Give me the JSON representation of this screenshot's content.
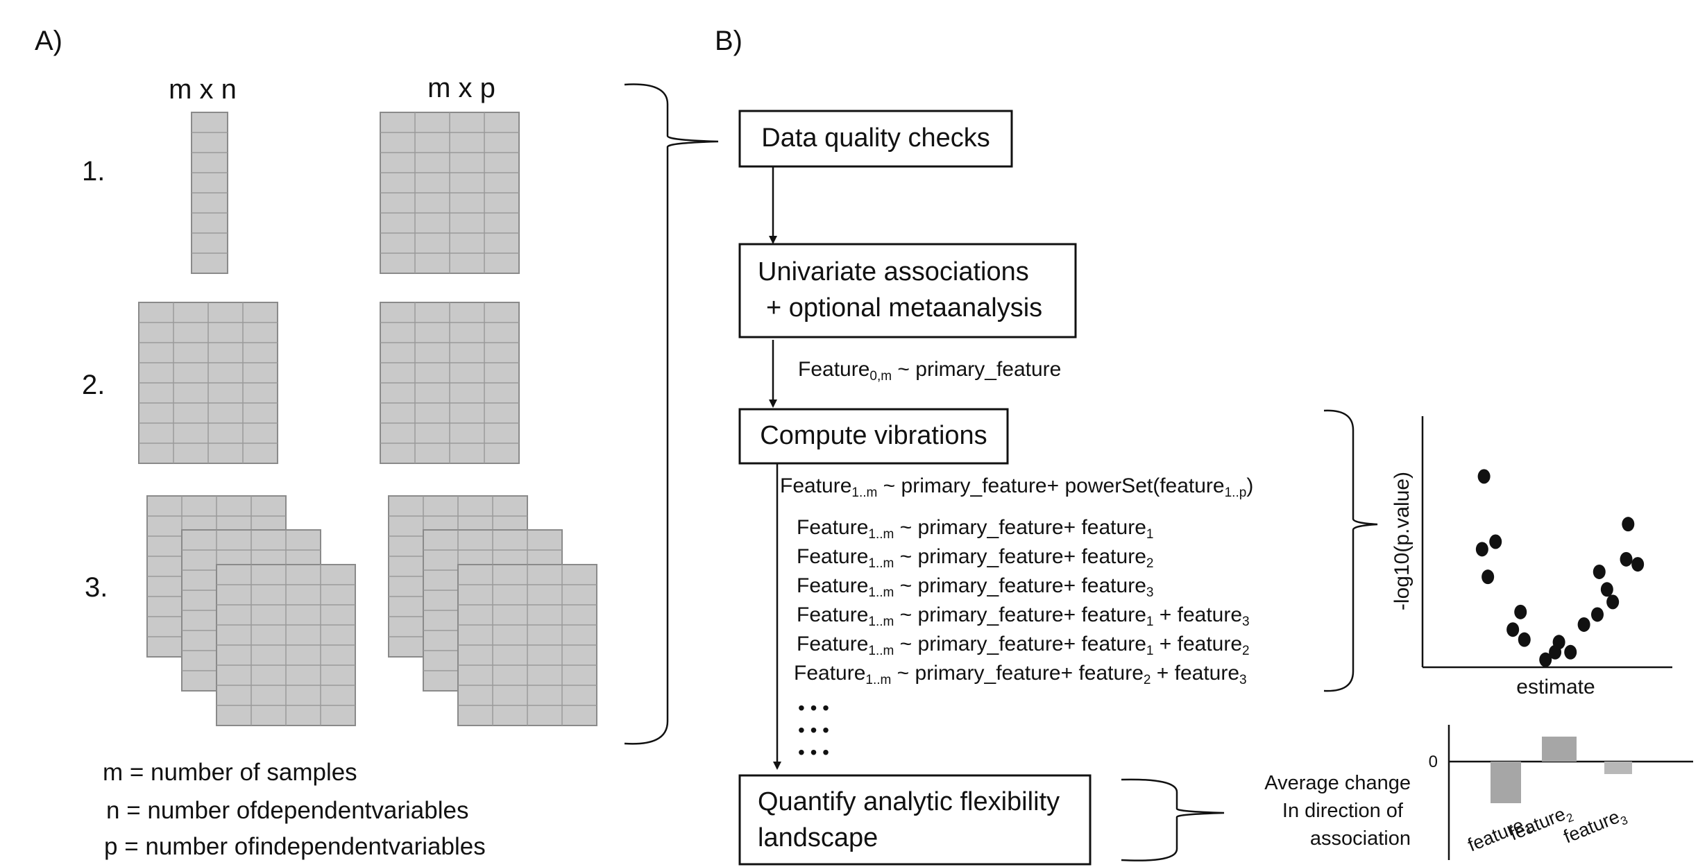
{
  "panel_a": {
    "label": "A)",
    "col_headers": [
      "m x n",
      "m x p"
    ],
    "row_labels": [
      "1.",
      "2.",
      "3."
    ],
    "legend": [
      "m = number of samples",
      "n = number ofdependentvariables",
      "p = number ofindependentvariables"
    ]
  },
  "panel_b": {
    "label": "B)",
    "steps": {
      "data_quality": "Data quality checks",
      "univariate_line1": "Univariate associations",
      "univariate_line2": "+ optional metaanalysis",
      "compute_vibrations": "Compute vibrations",
      "quantify_line1": "Quantify analytic flexibility",
      "quantify_line2": "landscape"
    },
    "univariate_formula": {
      "base": "Feature",
      "sub": "0,m",
      "rest": " ~ primary_feature"
    },
    "powerset_formula": {
      "base": "Feature",
      "sub": "1..m",
      "mid": " ~ primary_feature+  powerSet(feature",
      "sub2": "1..p",
      "end": ")"
    },
    "models": [
      {
        "base": "Feature",
        "sub": "1..m",
        "mid": " ~ primary_feature+ feature",
        "s1": "1",
        "tail": "",
        "s2": ""
      },
      {
        "base": "Feature",
        "sub": "1..m",
        "mid": " ~ primary_feature+ feature",
        "s1": "2",
        "tail": "",
        "s2": ""
      },
      {
        "base": "Feature",
        "sub": "1..m",
        "mid": " ~ primary_feature+ feature",
        "s1": "3",
        "tail": "",
        "s2": ""
      },
      {
        "base": "Feature",
        "sub": "1..m",
        "mid": " ~ primary_feature+ feature",
        "s1": "1",
        "tail": " + feature",
        "s2": "3"
      },
      {
        "base": "Feature",
        "sub": "1..m",
        "mid": " ~ primary_feature+ feature",
        "s1": "1",
        "tail": " + feature",
        "s2": "2"
      },
      {
        "base": "Feature",
        "sub": "1..m",
        "mid": " ~ primary_feature+ feature",
        "s1": "2",
        "tail": " + feature",
        "s2": "3"
      }
    ],
    "ellipsis": [
      "• • •",
      "• • •",
      "• • •"
    ]
  },
  "volcano": {
    "ylabel": "-log10(p.value)",
    "xlabel": "estimate"
  },
  "bar_chart": {
    "side_label": [
      "Average change",
      "In direction of",
      "association"
    ],
    "zero_label": "0",
    "x_labels": [
      {
        "base": "feature",
        "sub": "1"
      },
      {
        "base": "feature",
        "sub": "2"
      },
      {
        "base": "feature",
        "sub": "3"
      }
    ]
  },
  "chart_data": [
    {
      "type": "scatter",
      "title": "",
      "xlabel": "estimate",
      "ylabel": "-log10(p.value)",
      "points": [
        [
          -2.4,
          7.6
        ],
        [
          -2.45,
          4.7
        ],
        [
          -2.1,
          5.0
        ],
        [
          -2.3,
          3.6
        ],
        [
          -1.45,
          2.2
        ],
        [
          -1.65,
          1.5
        ],
        [
          -1.35,
          1.1
        ],
        [
          -0.8,
          0.3
        ],
        [
          -0.55,
          0.6
        ],
        [
          -0.45,
          1.0
        ],
        [
          -0.15,
          0.6
        ],
        [
          0.2,
          1.7
        ],
        [
          0.55,
          2.1
        ],
        [
          0.6,
          3.8
        ],
        [
          0.8,
          3.1
        ],
        [
          0.95,
          2.6
        ],
        [
          1.3,
          4.3
        ],
        [
          1.6,
          4.1
        ],
        [
          1.35,
          5.7
        ]
      ],
      "xlim": [
        -4,
        2.5
      ],
      "ylim": [
        0,
        10
      ],
      "grid": false
    },
    {
      "type": "bar",
      "categories": [
        "feature1",
        "feature2",
        "feature3"
      ],
      "values": [
        -1.5,
        0.9,
        -0.45
      ],
      "ylim": [
        -1.6,
        1.1
      ],
      "grid": false
    }
  ]
}
